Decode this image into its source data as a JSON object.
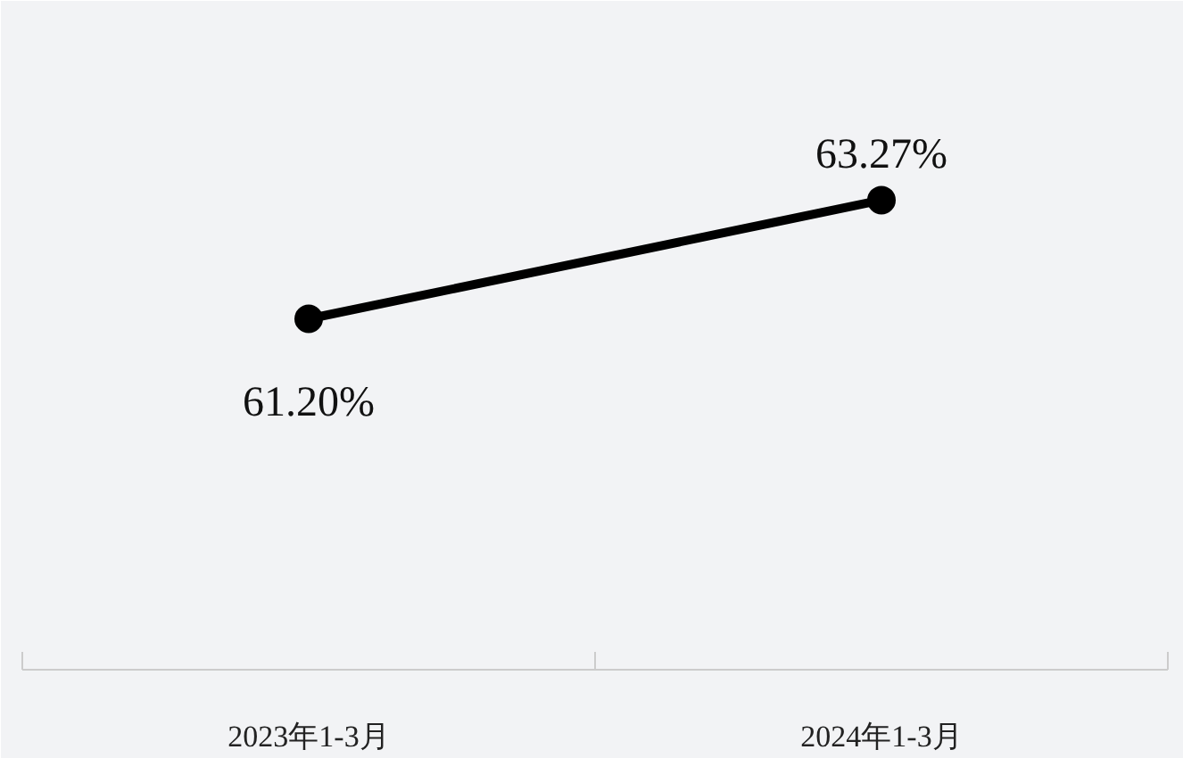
{
  "chart_data": {
    "type": "line",
    "categories": [
      "2023年1-3月",
      "2024年1-3月"
    ],
    "series": [
      {
        "color": "#000000",
        "values": [
          61.2,
          63.27
        ],
        "value_labels": [
          "61.20%",
          "63.27%"
        ]
      }
    ],
    "marker": "circle",
    "line_style": "solid",
    "grid": false,
    "tick_labels": "x"
  }
}
